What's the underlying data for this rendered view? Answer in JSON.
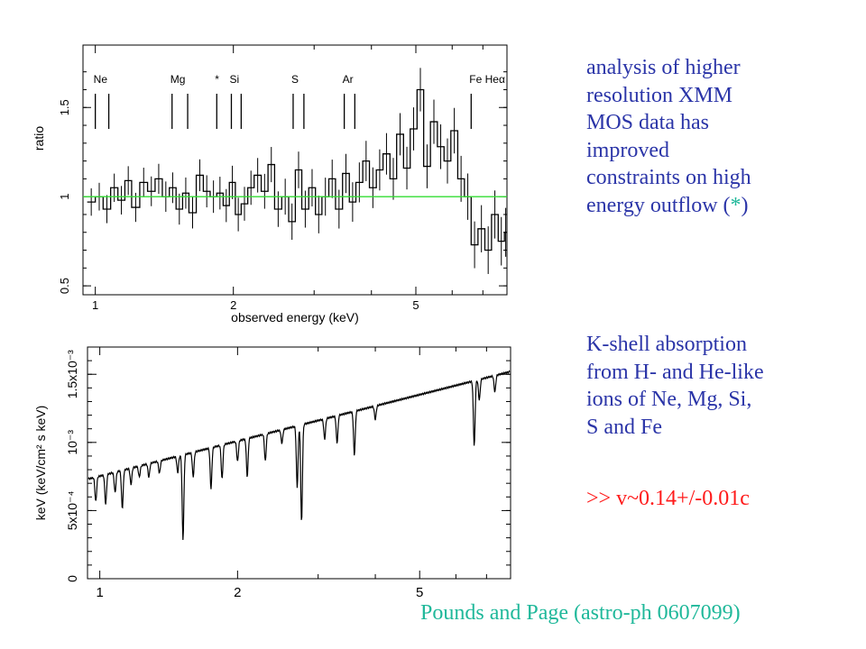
{
  "text": {
    "block1_lines": [
      "analysis of higher",
      "resolution XMM",
      "MOS data has",
      "improved",
      "constraints on high",
      "energy outflow"
    ],
    "block1_tail_open": " (",
    "block1_star": "*",
    "block1_tail_close": ")",
    "block2_lines": [
      "K-shell absorption",
      "from H- and He-like",
      "ions of Ne, Mg, Si,",
      "S and Fe"
    ],
    "result": ">> v~0.14+/-0.01c",
    "credit": "Pounds and Page (astro-ph 0607099)"
  },
  "colors": {
    "side_text": "#2b35a8",
    "result": "#ff1a1a",
    "credit": "#1fb89a",
    "unity_line": "#33dd33"
  },
  "chart_data": [
    {
      "type": "line",
      "xlabel": "observed energy (keV)",
      "ylabel": "ratio",
      "x_scale": "log",
      "xlim": [
        0.94,
        7.9
      ],
      "ylim": [
        0.45,
        1.85
      ],
      "x_ticks": [
        1,
        2,
        5
      ],
      "x_tick_labels": [
        "1",
        "2",
        "5"
      ],
      "y_ticks": [
        0.5,
        1,
        1.5
      ],
      "y_tick_labels": [
        "0.5",
        "1",
        "1.5"
      ],
      "reference_line": {
        "y": 1.0,
        "color": "#33dd33"
      },
      "line_markers": [
        {
          "label": "Ne",
          "energies": [
            1.0,
            1.07
          ]
        },
        {
          "label": "Mg",
          "energies": [
            1.47,
            1.59
          ]
        },
        {
          "label": "*",
          "energies": [
            1.84
          ]
        },
        {
          "label": "Si",
          "energies": [
            1.98,
            2.08
          ]
        },
        {
          "label": "S",
          "energies": [
            2.7,
            2.85
          ]
        },
        {
          "label": "Ar",
          "energies": [
            3.49,
            3.68
          ]
        },
        {
          "label": "Fe Heα",
          "energies": [
            6.6
          ]
        }
      ],
      "series": [
        {
          "x": [
            0.96,
            1.0,
            1.04,
            1.08,
            1.12,
            1.16,
            1.2,
            1.25,
            1.3,
            1.35,
            1.4,
            1.45,
            1.5,
            1.55,
            1.6,
            1.66,
            1.72,
            1.78,
            1.84,
            1.9,
            1.96,
            2.02,
            2.08,
            2.15,
            2.22,
            2.3,
            2.38,
            2.46,
            2.55,
            2.64,
            2.73,
            2.82,
            2.92,
            3.02,
            3.12,
            3.23,
            3.34,
            3.46,
            3.58,
            3.7,
            3.83,
            3.96,
            4.1,
            4.24,
            4.39,
            4.54,
            4.7,
            4.86,
            5.03,
            5.2,
            5.38,
            5.57,
            5.76,
            5.96,
            6.17,
            6.38,
            6.6,
            6.83,
            7.07,
            7.31,
            7.56,
            7.8
          ],
          "values": [
            0.97,
            1.0,
            0.93,
            1.05,
            0.98,
            1.09,
            0.94,
            1.08,
            1.03,
            1.1,
            1.0,
            1.05,
            0.93,
            1.02,
            0.91,
            1.12,
            1.03,
            1.0,
            1.02,
            0.95,
            1.08,
            0.9,
            0.96,
            1.05,
            1.12,
            1.03,
            1.18,
            0.93,
            1.0,
            0.86,
            1.15,
            0.93,
            1.05,
            0.9,
            1.0,
            1.1,
            0.93,
            1.13,
            0.97,
            1.08,
            1.2,
            1.05,
            1.15,
            1.24,
            1.1,
            1.35,
            1.16,
            1.38,
            1.6,
            1.17,
            1.42,
            1.28,
            1.2,
            1.37,
            1.1,
            1.0,
            0.73,
            0.82,
            0.7,
            0.9,
            0.75,
            0.8
          ]
        }
      ]
    },
    {
      "type": "line",
      "ylabel": "keV (keV/cm² s keV)",
      "x_scale": "log",
      "xlim": [
        0.94,
        7.9
      ],
      "ylim": [
        0,
        0.0017
      ],
      "x_ticks": [
        1,
        2,
        5
      ],
      "x_tick_labels": [
        "1",
        "2",
        "5"
      ],
      "y_ticks": [
        0,
        0.0005,
        0.001,
        0.0015
      ],
      "y_tick_labels": [
        "0",
        "5x10⁻⁴",
        "10⁻³",
        "1.5x10⁻³"
      ],
      "continuum": {
        "x": [
          0.94,
          7.9
        ],
        "values": [
          0.00073,
          0.00152
        ]
      },
      "absorption_lines": [
        {
          "energy": 0.98,
          "depth": 0.00018
        },
        {
          "energy": 1.03,
          "depth": 0.00022
        },
        {
          "energy": 1.08,
          "depth": 0.00015
        },
        {
          "energy": 1.12,
          "depth": 0.00028
        },
        {
          "energy": 1.17,
          "depth": 0.00012
        },
        {
          "energy": 1.22,
          "depth": 8e-05
        },
        {
          "energy": 1.28,
          "depth": 0.0001
        },
        {
          "energy": 1.35,
          "depth": 9e-05
        },
        {
          "energy": 1.48,
          "depth": 0.00012
        },
        {
          "energy": 1.52,
          "depth": 0.00062
        },
        {
          "energy": 1.6,
          "depth": 0.00018
        },
        {
          "energy": 1.75,
          "depth": 0.0003
        },
        {
          "energy": 1.85,
          "depth": 0.00025
        },
        {
          "energy": 2.0,
          "depth": 0.00015
        },
        {
          "energy": 2.1,
          "depth": 0.00028
        },
        {
          "energy": 2.3,
          "depth": 0.0002
        },
        {
          "energy": 2.5,
          "depth": 0.0001
        },
        {
          "energy": 2.7,
          "depth": 0.00045
        },
        {
          "energy": 2.76,
          "depth": 0.00072
        },
        {
          "energy": 3.1,
          "depth": 0.00015
        },
        {
          "energy": 3.3,
          "depth": 0.0002
        },
        {
          "energy": 3.6,
          "depth": 0.00032
        },
        {
          "energy": 4.0,
          "depth": 0.0001
        },
        {
          "energy": 6.58,
          "depth": 0.00048
        },
        {
          "energy": 6.75,
          "depth": 0.00015
        },
        {
          "energy": 7.3,
          "depth": 0.00012
        }
      ]
    }
  ]
}
